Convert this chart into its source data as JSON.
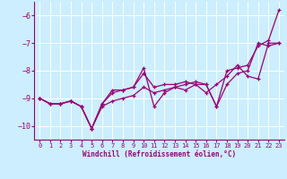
{
  "xlabel": "Windchill (Refroidissement éolien,°C)",
  "background_color": "#cceeff",
  "grid_color": "#ffffff",
  "line_color": "#990077",
  "xlim": [
    -0.5,
    23.5
  ],
  "ylim": [
    -10.5,
    -5.5
  ],
  "yticks": [
    -10,
    -9,
    -8,
    -7,
    -6
  ],
  "xticks": [
    0,
    1,
    2,
    3,
    4,
    5,
    6,
    7,
    8,
    9,
    10,
    11,
    12,
    13,
    14,
    15,
    16,
    17,
    18,
    19,
    20,
    21,
    22,
    23
  ],
  "series": [
    [
      -9.0,
      -9.2,
      -9.2,
      -9.1,
      -9.3,
      -10.1,
      -9.2,
      -8.7,
      -8.7,
      -8.6,
      -7.9,
      -9.3,
      -8.8,
      -8.6,
      -8.5,
      -8.4,
      -8.5,
      -9.3,
      -8.0,
      -7.9,
      -7.8,
      -7.1,
      -6.9,
      -5.8
    ],
    [
      -9.0,
      -9.2,
      -9.2,
      -9.1,
      -9.3,
      -10.1,
      -9.2,
      -8.8,
      -8.7,
      -8.6,
      -8.1,
      -8.6,
      -8.5,
      -8.5,
      -8.4,
      -8.5,
      -8.8,
      -8.5,
      -8.2,
      -7.8,
      -8.2,
      -8.3,
      -7.0,
      -7.0
    ],
    [
      -9.0,
      -9.2,
      -9.2,
      -9.1,
      -9.3,
      -10.1,
      -9.3,
      -9.1,
      -9.0,
      -8.9,
      -8.6,
      -8.8,
      -8.7,
      -8.6,
      -8.7,
      -8.5,
      -8.5,
      -9.3,
      -8.5,
      -8.1,
      -8.0,
      -7.0,
      -7.1,
      -7.0
    ]
  ]
}
